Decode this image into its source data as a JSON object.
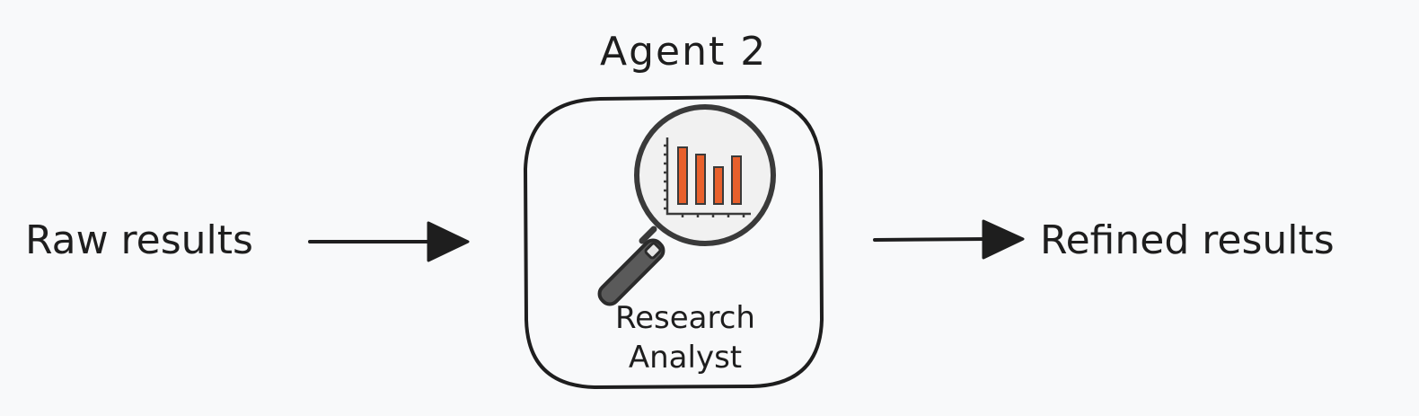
{
  "diagram": {
    "title": "Agent 2",
    "input_label": "Raw results",
    "output_label": "Refined results",
    "agent_role_line1": "Research",
    "agent_role_line2": "Analyst"
  },
  "icon": {
    "name": "magnifier-bar-chart-icon",
    "bar_color": "#e8602c",
    "lens_color": "#f1f1f1",
    "handle_color": "#5a5a5a"
  },
  "colors": {
    "background": "#f8f9fa",
    "stroke": "#1e1e1e"
  }
}
